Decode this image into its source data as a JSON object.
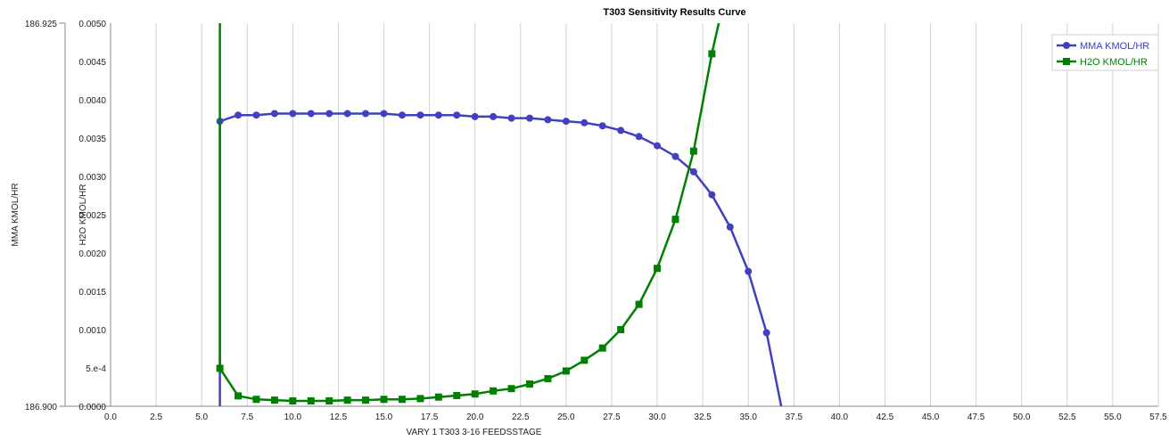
{
  "chart_data": {
    "type": "line",
    "title": "T303 Sensitivity Results Curve",
    "xlabel": "VARY   1 T303 3-16 FEEDSSTAGE",
    "ylabel_left": "MMA KMOL/HR",
    "ylabel_right": "H2O KMOL/HR",
    "xlim": [
      0,
      57.5
    ],
    "xticks": [
      "0.0",
      "2.5",
      "5.0",
      "7.5",
      "10.0",
      "12.5",
      "15.0",
      "17.5",
      "20.0",
      "22.5",
      "25.0",
      "27.5",
      "30.0",
      "32.5",
      "35.0",
      "37.5",
      "40.0",
      "42.5",
      "45.0",
      "47.5",
      "50.0",
      "52.5",
      "55.0",
      "57.5"
    ],
    "y_left": {
      "label": "MMA KMOL/HR",
      "lim": [
        186.9,
        186.925
      ],
      "ticks": [
        "186.925",
        "186.900"
      ]
    },
    "y_right": {
      "label": "H2O KMOL/HR",
      "lim": [
        0,
        0.005
      ],
      "ticks": [
        "0.0050",
        "0.0045",
        "0.0040",
        "0.0035",
        "0.0030",
        "0.0025",
        "0.0020",
        "0.0015",
        "0.0010",
        "5.e-4",
        "0.0000"
      ]
    },
    "grid": true,
    "legend_position": "top-right",
    "series": [
      {
        "name": "MMA KMOL/HR",
        "axis": "left",
        "color": "#4040c0",
        "marker": "circle",
        "x": [
          6,
          7,
          8,
          9,
          10,
          11,
          12,
          13,
          14,
          15,
          16,
          17,
          18,
          19,
          20,
          21,
          22,
          23,
          24,
          25,
          26,
          27,
          28,
          29,
          30,
          31,
          32,
          33,
          34,
          35,
          36
        ],
        "y": [
          186.9186,
          186.919,
          186.919,
          186.9191,
          186.9191,
          186.9191,
          186.9191,
          186.9191,
          186.9191,
          186.9191,
          186.919,
          186.919,
          186.919,
          186.919,
          186.9189,
          186.9189,
          186.9188,
          186.9188,
          186.9187,
          186.9186,
          186.9185,
          186.9183,
          186.918,
          186.9176,
          186.917,
          186.9163,
          186.9153,
          186.9138,
          186.9117,
          186.9088,
          186.9048
        ]
      },
      {
        "name": "H2O KMOL/HR",
        "axis": "right",
        "color": "#008000",
        "marker": "square",
        "x": [
          6,
          7,
          8,
          9,
          10,
          11,
          12,
          13,
          14,
          15,
          16,
          17,
          18,
          19,
          20,
          21,
          22,
          23,
          24,
          25,
          26,
          27,
          28,
          29,
          30,
          31,
          32,
          33
        ],
        "y": [
          0.000495,
          0.000135,
          9e-05,
          8e-05,
          7e-05,
          7e-05,
          7e-05,
          8e-05,
          8e-05,
          9e-05,
          9e-05,
          0.0001,
          0.00012,
          0.00014,
          0.00016,
          0.0002,
          0.00023,
          0.00029,
          0.00036,
          0.00046,
          0.0006,
          0.00076,
          0.001,
          0.00133,
          0.0018,
          0.00244,
          0.00333,
          0.0046
        ]
      }
    ]
  }
}
